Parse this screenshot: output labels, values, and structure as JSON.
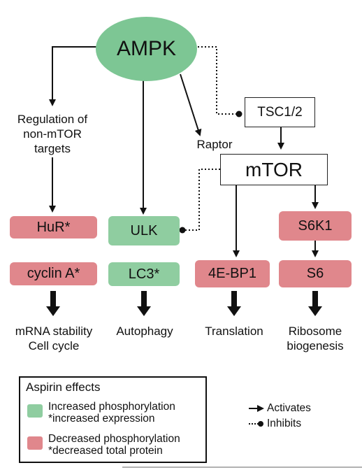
{
  "nodes": {
    "ampk": "AMPK",
    "tsc": "TSC1/2",
    "mtor": "mTOR",
    "hur": "HuR*",
    "cyclin": "cyclin A*",
    "ulk": "ULK",
    "lc3": "LC3*",
    "s6k1": "S6K1",
    "ebp1": "4E-BP1",
    "s6": "S6"
  },
  "labels": {
    "regulation": [
      "Regulation of",
      "non-mTOR",
      "targets"
    ],
    "raptor": "Raptor"
  },
  "outcomes": {
    "mrna": [
      "mRNA stability",
      "Cell cycle"
    ],
    "autophagy": "Autophagy",
    "translation": "Translation",
    "ribosome": [
      "Ribosome",
      "biogenesis"
    ]
  },
  "legend": {
    "title": "Aspirin effects",
    "increased": [
      "Increased phosphorylation",
      "*increased expression"
    ],
    "decreased": [
      "Decreased phosphorylation",
      "*decreased total protein"
    ],
    "activates": "Activates",
    "inhibits": "Inhibits"
  },
  "colors": {
    "increased": "#8fcda0",
    "decreased": "#e0878c",
    "ampk": "#7dc694"
  }
}
